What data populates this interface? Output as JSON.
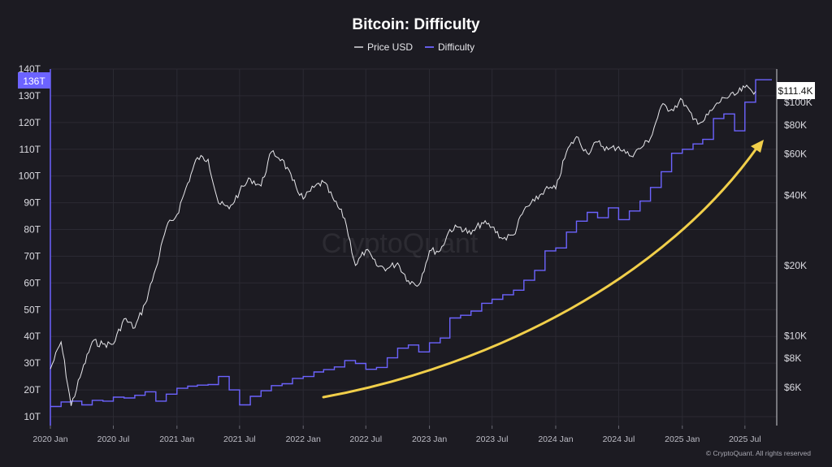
{
  "chart_data": {
    "type": "line",
    "title": "Bitcoin: Difficulty",
    "legend": [
      "Price USD",
      "Difficulty"
    ],
    "legend_placement": "top-center",
    "colors": {
      "price": "#e8e8ec",
      "difficulty": "#6c63ff",
      "arrow": "#f1cf4a",
      "background": "#1c1b22"
    },
    "x_ticks": [
      "2020 Jan",
      "2020 Jul",
      "2021 Jan",
      "2021 Jul",
      "2022 Jan",
      "2022 Jul",
      "2023 Jan",
      "2023 Jul",
      "2024 Jan",
      "2024 Jul",
      "2025 Jan",
      "2025 Jul"
    ],
    "left_axis": {
      "label": "",
      "ticks": [
        "10T",
        "20T",
        "30T",
        "40T",
        "50T",
        "60T",
        "70T",
        "80T",
        "90T",
        "100T",
        "110T",
        "120T",
        "130T",
        "140T"
      ],
      "range": [
        10,
        140
      ]
    },
    "right_axis": {
      "label": "",
      "scale": "log",
      "ticks": [
        "$6K",
        "$8K",
        "$10K",
        "$20K",
        "$40K",
        "$60K",
        "$80K",
        "$100K"
      ],
      "tick_values": [
        6000,
        8000,
        10000,
        20000,
        40000,
        60000,
        80000,
        100000
      ]
    },
    "current": {
      "difficulty_label": "136T",
      "price_label": "$111.4K"
    },
    "series": [
      {
        "name": "Difficulty",
        "axis": "left",
        "points": [
          [
            "2020-01-01",
            13.8
          ],
          [
            "2020-02-01",
            15.5
          ],
          [
            "2020-03-01",
            15.8
          ],
          [
            "2020-04-01",
            14.4
          ],
          [
            "2020-05-01",
            16.1
          ],
          [
            "2020-06-01",
            15.8
          ],
          [
            "2020-07-01",
            17.3
          ],
          [
            "2020-08-01",
            17.0
          ],
          [
            "2020-09-01",
            18.0
          ],
          [
            "2020-10-01",
            19.3
          ],
          [
            "2020-11-01",
            15.8
          ],
          [
            "2020-12-01",
            18.4
          ],
          [
            "2021-01-01",
            20.6
          ],
          [
            "2021-02-01",
            21.4
          ],
          [
            "2021-03-01",
            21.8
          ],
          [
            "2021-04-01",
            22.0
          ],
          [
            "2021-05-01",
            25.0
          ],
          [
            "2021-06-01",
            20.0
          ],
          [
            "2021-07-01",
            14.4
          ],
          [
            "2021-08-01",
            17.6
          ],
          [
            "2021-09-01",
            19.7
          ],
          [
            "2021-10-01",
            21.6
          ],
          [
            "2021-11-01",
            22.3
          ],
          [
            "2021-12-01",
            24.3
          ],
          [
            "2022-01-01",
            25.0
          ],
          [
            "2022-02-01",
            26.7
          ],
          [
            "2022-03-01",
            27.6
          ],
          [
            "2022-04-01",
            28.6
          ],
          [
            "2022-05-01",
            31.0
          ],
          [
            "2022-06-01",
            29.9
          ],
          [
            "2022-07-01",
            27.7
          ],
          [
            "2022-08-01",
            28.4
          ],
          [
            "2022-09-01",
            32.0
          ],
          [
            "2022-10-01",
            35.6
          ],
          [
            "2022-11-01",
            36.8
          ],
          [
            "2022-12-01",
            34.2
          ],
          [
            "2023-01-01",
            37.6
          ],
          [
            "2023-02-01",
            39.4
          ],
          [
            "2023-03-01",
            46.9
          ],
          [
            "2023-04-01",
            47.9
          ],
          [
            "2023-05-01",
            49.5
          ],
          [
            "2023-06-01",
            52.4
          ],
          [
            "2023-07-01",
            53.9
          ],
          [
            "2023-08-01",
            55.6
          ],
          [
            "2023-09-01",
            57.3
          ],
          [
            "2023-10-01",
            61.0
          ],
          [
            "2023-11-01",
            64.7
          ],
          [
            "2023-12-01",
            72.0
          ],
          [
            "2024-01-01",
            73.1
          ],
          [
            "2024-02-01",
            79.0
          ],
          [
            "2024-03-01",
            83.1
          ],
          [
            "2024-04-01",
            86.4
          ],
          [
            "2024-05-01",
            84.4
          ],
          [
            "2024-06-01",
            88.1
          ],
          [
            "2024-07-01",
            83.7
          ],
          [
            "2024-08-01",
            86.9
          ],
          [
            "2024-09-01",
            90.6
          ],
          [
            "2024-10-01",
            95.7
          ],
          [
            "2024-11-01",
            101.6
          ],
          [
            "2024-12-01",
            108.5
          ],
          [
            "2025-01-01",
            110.0
          ],
          [
            "2025-02-01",
            112.0
          ],
          [
            "2025-03-01",
            113.7
          ],
          [
            "2025-04-01",
            121.5
          ],
          [
            "2025-05-01",
            123.2
          ],
          [
            "2025-06-01",
            116.9
          ],
          [
            "2025-07-01",
            127.6
          ],
          [
            "2025-08-01",
            136.0
          ]
        ]
      },
      {
        "name": "Price USD",
        "axis": "right",
        "points": [
          [
            "2020-01-01",
            7200
          ],
          [
            "2020-02-01",
            9400
          ],
          [
            "2020-03-01",
            5000
          ],
          [
            "2020-04-01",
            7000
          ],
          [
            "2020-05-01",
            9400
          ],
          [
            "2020-06-01",
            9200
          ],
          [
            "2020-07-01",
            9200
          ],
          [
            "2020-08-01",
            11800
          ],
          [
            "2020-09-01",
            10800
          ],
          [
            "2020-10-01",
            13700
          ],
          [
            "2020-11-01",
            19400
          ],
          [
            "2020-12-01",
            29000
          ],
          [
            "2021-01-01",
            33000
          ],
          [
            "2021-02-01",
            45000
          ],
          [
            "2021-03-01",
            58000
          ],
          [
            "2021-04-01",
            57000
          ],
          [
            "2021-05-01",
            37000
          ],
          [
            "2021-06-01",
            35000
          ],
          [
            "2021-07-01",
            41500
          ],
          [
            "2021-08-01",
            47000
          ],
          [
            "2021-09-01",
            43800
          ],
          [
            "2021-10-01",
            61300
          ],
          [
            "2021-11-01",
            57000
          ],
          [
            "2021-12-01",
            46300
          ],
          [
            "2022-01-01",
            38500
          ],
          [
            "2022-02-01",
            43200
          ],
          [
            "2022-03-01",
            45500
          ],
          [
            "2022-04-01",
            37700
          ],
          [
            "2022-05-01",
            31800
          ],
          [
            "2022-06-01",
            20000
          ],
          [
            "2022-07-01",
            23300
          ],
          [
            "2022-08-01",
            20000
          ],
          [
            "2022-09-01",
            19400
          ],
          [
            "2022-10-01",
            20500
          ],
          [
            "2022-11-01",
            17200
          ],
          [
            "2022-12-01",
            16500
          ],
          [
            "2023-01-01",
            23100
          ],
          [
            "2023-02-01",
            23100
          ],
          [
            "2023-03-01",
            28500
          ],
          [
            "2023-04-01",
            29200
          ],
          [
            "2023-05-01",
            27200
          ],
          [
            "2023-06-01",
            30500
          ],
          [
            "2023-07-01",
            29200
          ],
          [
            "2023-08-01",
            26000
          ],
          [
            "2023-09-01",
            27000
          ],
          [
            "2023-10-01",
            34500
          ],
          [
            "2023-11-01",
            37700
          ],
          [
            "2023-12-01",
            42300
          ],
          [
            "2024-01-01",
            42600
          ],
          [
            "2024-02-01",
            61200
          ],
          [
            "2024-03-01",
            71300
          ],
          [
            "2024-04-01",
            60600
          ],
          [
            "2024-05-01",
            67500
          ],
          [
            "2024-06-01",
            62700
          ],
          [
            "2024-07-01",
            64600
          ],
          [
            "2024-08-01",
            59000
          ],
          [
            "2024-09-01",
            63300
          ],
          [
            "2024-10-01",
            70200
          ],
          [
            "2024-11-01",
            96400
          ],
          [
            "2024-12-01",
            93400
          ],
          [
            "2025-01-01",
            102400
          ],
          [
            "2025-02-01",
            84300
          ],
          [
            "2025-03-01",
            82500
          ],
          [
            "2025-04-01",
            94200
          ],
          [
            "2025-05-01",
            104600
          ],
          [
            "2025-06-01",
            107100
          ],
          [
            "2025-07-01",
            115700
          ],
          [
            "2025-08-01",
            111400
          ]
        ]
      }
    ]
  },
  "footer": {
    "copyright": "© CryptoQuant. All rights reserved",
    "watermark": "CryptoQuant"
  }
}
